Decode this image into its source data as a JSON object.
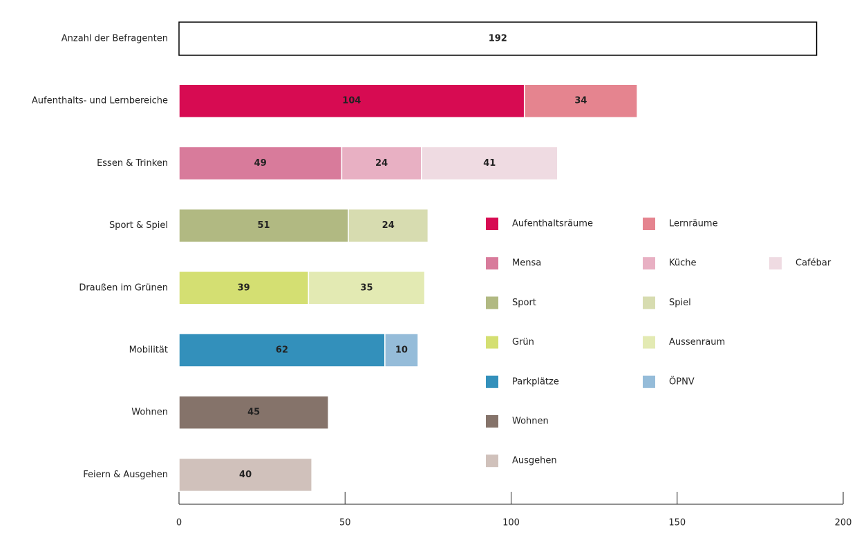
{
  "chart_data": {
    "type": "stacked_bar_horizontal",
    "categories": [
      "Anzahl der Befragenten",
      "Aufenthalts- und Lernbereiche",
      "Essen & Trinken",
      "Sport & Spiel",
      "Draußen im Grünen",
      "Mobilität",
      "Wohnen",
      "Feiern & Ausgehen"
    ],
    "series": [
      {
        "color": "#ffffff",
        "label_color": "#000000",
        "values": [
          192,
          null,
          null,
          null,
          null,
          null,
          null,
          null
        ]
      },
      {
        "name": "Aufenthaltsräume",
        "color": "#d70b52",
        "label_color": "#ffffff",
        "values": [
          null,
          104,
          null,
          null,
          null,
          null,
          null,
          null
        ]
      },
      {
        "name": "Lernräume",
        "color": "#e5848f",
        "label_color": "#ffffff",
        "values": [
          null,
          34,
          null,
          null,
          null,
          null,
          null,
          null
        ]
      },
      {
        "name": "Mensa",
        "color": "#d87b9b",
        "label_color": "#ffffff",
        "values": [
          null,
          null,
          49,
          null,
          null,
          null,
          null,
          null
        ]
      },
      {
        "name": "Küche",
        "color": "#e8b0c3",
        "label_color": "#ffffff",
        "values": [
          null,
          null,
          24,
          null,
          null,
          null,
          null,
          null
        ]
      },
      {
        "name": "Cafébar",
        "color": "#efdbe2",
        "label_color": "#d87b9b",
        "values": [
          null,
          null,
          41,
          null,
          null,
          null,
          null,
          null
        ]
      },
      {
        "name": "Sport",
        "color": "#b1b982",
        "label_color": "#ffffff",
        "values": [
          null,
          null,
          null,
          51,
          null,
          null,
          null,
          null
        ]
      },
      {
        "name": "Spiel",
        "color": "#d7dcb0",
        "label_color": "#ffffff",
        "values": [
          null,
          null,
          null,
          24,
          null,
          null,
          null,
          null
        ]
      },
      {
        "name": "Grün",
        "color": "#d4df72",
        "label_color": "#ffffff",
        "values": [
          null,
          null,
          null,
          null,
          39,
          null,
          null,
          null
        ]
      },
      {
        "name": "Aussenraum",
        "color": "#e3eab3",
        "label_color": "#ffffff",
        "values": [
          null,
          null,
          null,
          null,
          35,
          null,
          null,
          null
        ]
      },
      {
        "name": "Parkplätze",
        "color": "#3390bb",
        "label_color": "#ffffff",
        "values": [
          null,
          null,
          null,
          null,
          null,
          62,
          null,
          null
        ]
      },
      {
        "name": "ÖPNV",
        "color": "#95bcd9",
        "label_color": "#ffffff",
        "values": [
          null,
          null,
          null,
          null,
          null,
          10,
          null,
          null
        ]
      },
      {
        "name": "Wohnen",
        "color": "#85736a",
        "label_color": "#ffffff",
        "values": [
          null,
          null,
          null,
          null,
          null,
          null,
          45,
          null
        ]
      },
      {
        "name": "Ausgehen",
        "color": "#d0c1bb",
        "label_color": "#ffffff",
        "values": [
          null,
          null,
          null,
          null,
          null,
          null,
          null,
          40
        ]
      }
    ],
    "xlim": [
      0,
      200
    ],
    "xticks": [
      0,
      50,
      100,
      150,
      200
    ]
  }
}
